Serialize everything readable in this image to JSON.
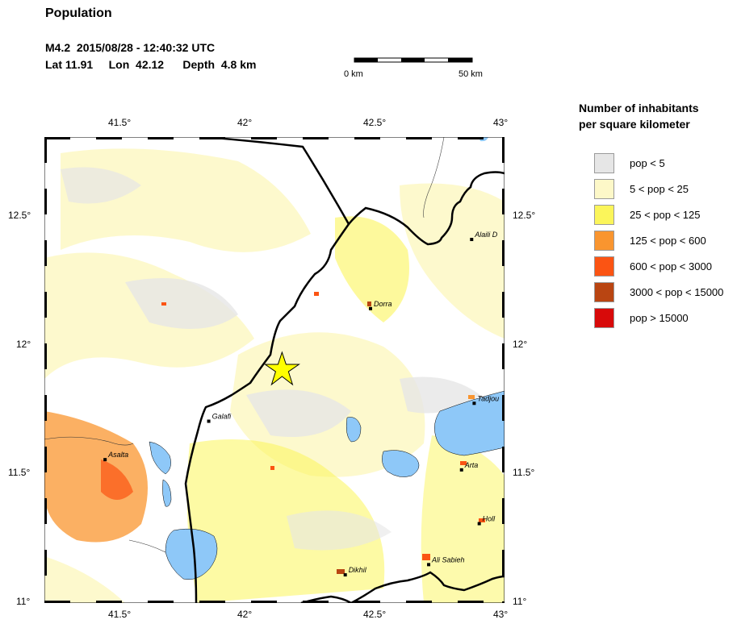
{
  "header": {
    "title": "Population",
    "event_line": "M4.2  2015/08/28 - 12:40:32 UTC",
    "location_line": "Lat 11.91     Lon  42.12      Depth  4.8 km"
  },
  "scalebar": {
    "left_label": "0 km",
    "right_label": "50 km"
  },
  "map": {
    "lon_range": [
      41.18,
      43.0
    ],
    "lat_range": [
      11.0,
      12.82
    ],
    "lon_ticks": [
      "41.5°",
      "42°",
      "42.5°",
      "43°"
    ],
    "lat_ticks": [
      "12.5°",
      "12°",
      "11.5°",
      "11°"
    ],
    "epicenter": {
      "lon": 42.12,
      "lat": 11.91,
      "marker": "star-icon",
      "color": "#ffff00"
    },
    "cities": [
      {
        "name": "Dorra",
        "lon": 42.47,
        "lat": 12.15
      },
      {
        "name": "Alaili D",
        "lon": 42.87,
        "lat": 12.42
      },
      {
        "name": "Galafi",
        "lon": 41.83,
        "lat": 11.71
      },
      {
        "name": "Tadjou",
        "lon": 42.88,
        "lat": 11.78
      },
      {
        "name": "Asalta",
        "lon": 41.42,
        "lat": 11.56
      },
      {
        "name": "Arta",
        "lon": 42.83,
        "lat": 11.52
      },
      {
        "name": "Holl",
        "lon": 42.9,
        "lat": 11.31
      },
      {
        "name": "Ali Sabieh",
        "lon": 42.7,
        "lat": 11.15
      },
      {
        "name": "Dikhil",
        "lon": 42.37,
        "lat": 11.11
      }
    ],
    "colors": {
      "water": "#8ec8f8",
      "border": "#000000"
    }
  },
  "legend": {
    "title_line1": "Number of inhabitants",
    "title_line2": "per square kilometer",
    "items": [
      {
        "label": "pop < 5",
        "color": "#e6e6e6"
      },
      {
        "label": "5 < pop < 25",
        "color": "#fdf8c8"
      },
      {
        "label": "25 < pop < 125",
        "color": "#fbf55a"
      },
      {
        "label": "125 < pop < 600",
        "color": "#f9952f"
      },
      {
        "label": "600 < pop < 3000",
        "color": "#fb5413"
      },
      {
        "label": "3000 < pop < 15000",
        "color": "#b94512"
      },
      {
        "label": "pop > 15000",
        "color": "#d80a0a"
      }
    ]
  }
}
